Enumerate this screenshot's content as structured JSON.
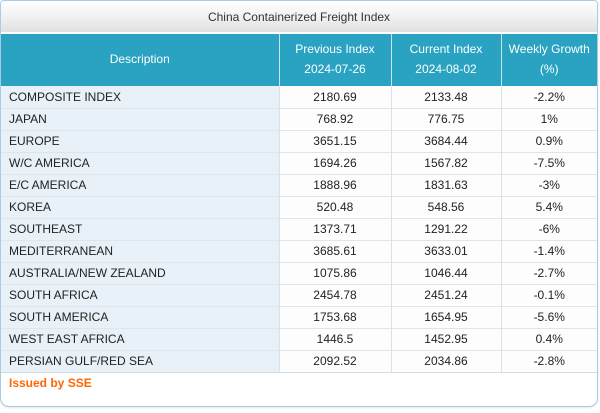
{
  "title_bar": {
    "title": "China Containerized Freight Index"
  },
  "table": {
    "columns": [
      {
        "id": "description",
        "label": "Description",
        "sub": ""
      },
      {
        "id": "previous_index",
        "label": "Previous Index",
        "sub": "2024-07-26"
      },
      {
        "id": "current_index",
        "label": "Current Index",
        "sub": "2024-08-02"
      },
      {
        "id": "weekly_growth",
        "label": "Weekly Growth",
        "sub": "(%)"
      }
    ],
    "rows": [
      {
        "description": "COMPOSITE INDEX",
        "previous_index": "2180.69",
        "current_index": "2133.48",
        "weekly_growth": "-2.2%"
      },
      {
        "description": "JAPAN",
        "previous_index": "768.92",
        "current_index": "776.75",
        "weekly_growth": "1%"
      },
      {
        "description": "EUROPE",
        "previous_index": "3651.15",
        "current_index": "3684.44",
        "weekly_growth": "0.9%"
      },
      {
        "description": "W/C AMERICA",
        "previous_index": "1694.26",
        "current_index": "1567.82",
        "weekly_growth": "-7.5%"
      },
      {
        "description": "E/C AMERICA",
        "previous_index": "1888.96",
        "current_index": "1831.63",
        "weekly_growth": "-3%"
      },
      {
        "description": "KOREA",
        "previous_index": "520.48",
        "current_index": "548.56",
        "weekly_growth": "5.4%"
      },
      {
        "description": "SOUTHEAST",
        "previous_index": "1373.71",
        "current_index": "1291.22",
        "weekly_growth": "-6%"
      },
      {
        "description": "MEDITERRANEAN",
        "previous_index": "3685.61",
        "current_index": "3633.01",
        "weekly_growth": "-1.4%"
      },
      {
        "description": "AUSTRALIA/NEW ZEALAND",
        "previous_index": "1075.86",
        "current_index": "1046.44",
        "weekly_growth": "-2.7%"
      },
      {
        "description": "SOUTH AFRICA",
        "previous_index": "2454.78",
        "current_index": "2451.24",
        "weekly_growth": "-0.1%"
      },
      {
        "description": "SOUTH AMERICA",
        "previous_index": "1753.68",
        "current_index": "1654.95",
        "weekly_growth": "-5.6%"
      },
      {
        "description": "WEST EAST AFRICA",
        "previous_index": "1446.5",
        "current_index": "1452.95",
        "weekly_growth": "0.4%"
      },
      {
        "description": "PERSIAN GULF/RED SEA",
        "previous_index": "2092.52",
        "current_index": "2034.86",
        "weekly_growth": "-2.8%"
      }
    ]
  },
  "footer": {
    "issued_by": "Issued by SSE"
  },
  "colors": {
    "header_bg": "#2aa2c2",
    "label_cell_bg": "#e8f1f8",
    "footer_text": "#ff6600",
    "outer_border": "#a9cbe8"
  }
}
